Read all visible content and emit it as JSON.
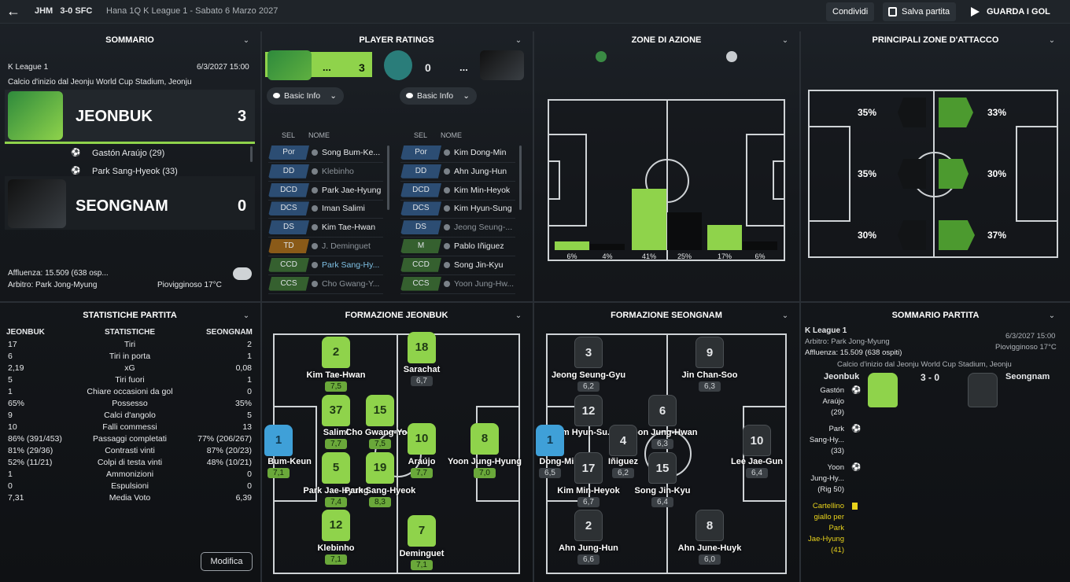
{
  "topbar": {
    "home_abbr": "JHM",
    "score": "3-0",
    "away_abbr": "SFC",
    "competition": "Hana 1Q K League 1 - Sabato 6 Marzo 2027",
    "share": "Condividi",
    "save": "Salva partita",
    "watch": "GUARDA I GOL"
  },
  "summary": {
    "title": "SOMMARIO",
    "league": "K League 1",
    "datetime": "6/3/2027 15:00",
    "kickoff": "Calcio d'inizio dal Jeonju World Cup Stadium, Jeonju",
    "home_name": "JEONBUK",
    "home_score": "3",
    "away_name": "SEONGNAM",
    "away_score": "0",
    "scorers": [
      "Gastón Araújo (29)",
      "Park Sang-Hyeok (33)"
    ],
    "attendance": "Affluenza: 15.509 (638 osp...",
    "referee": "Arbitro: Park Jong-Myung",
    "weather": "Piovigginoso 17°C"
  },
  "ratings": {
    "title": "PLAYER RATINGS",
    "home_score": "3",
    "away_score": "0",
    "dots": "...",
    "home_dropdown": "Basic Info",
    "away_dropdown": "Basic Info",
    "col_sel": "SEL",
    "col_name": "NOME",
    "home": [
      {
        "pos": "Por",
        "name": "Song Bum-Ke..."
      },
      {
        "pos": "DD",
        "name": "Klebinho"
      },
      {
        "pos": "DCD",
        "name": "Park Jae-Hyung"
      },
      {
        "pos": "DCS",
        "name": "Iman Salimi"
      },
      {
        "pos": "DS",
        "name": "Kim Tae-Hwan"
      },
      {
        "pos": "TD",
        "name": "J. Deminguet"
      },
      {
        "pos": "CCD",
        "name": "Park Sang-Hy..."
      },
      {
        "pos": "CCS",
        "name": "Cho Gwang-Y..."
      }
    ],
    "away": [
      {
        "pos": "Por",
        "name": "Kim Dong-Min"
      },
      {
        "pos": "DD",
        "name": "Ahn Jung-Hun"
      },
      {
        "pos": "DCD",
        "name": "Kim Min-Heyok"
      },
      {
        "pos": "DCS",
        "name": "Kim Hyun-Sung"
      },
      {
        "pos": "DS",
        "name": "Jeong Seung-..."
      },
      {
        "pos": "M",
        "name": "Pablo Iñiguez"
      },
      {
        "pos": "CCD",
        "name": "Song Jin-Kyu"
      },
      {
        "pos": "CCS",
        "name": "Yoon Jung-Hw..."
      }
    ]
  },
  "zones": {
    "title": "ZONE DI AZIONE",
    "labels": [
      "6%",
      "4%",
      "41%",
      "25%",
      "17%",
      "6%"
    ],
    "values": [
      6,
      4,
      41,
      25,
      17,
      6
    ]
  },
  "attack": {
    "title": "PRINCIPALI ZONE D'ATTACCO",
    "home": [
      "35%",
      "35%",
      "30%"
    ],
    "away": [
      "33%",
      "30%",
      "37%"
    ]
  },
  "stats": {
    "title": "STATISTICHE PARTITA",
    "h_home": "JEONBUK",
    "h_mid": "STATISTICHE",
    "h_away": "SEONGNAM",
    "edit": "Modifica",
    "rows": [
      [
        "17",
        "Tiri",
        "2"
      ],
      [
        "6",
        "Tiri in porta",
        "1"
      ],
      [
        "2,19",
        "xG",
        "0,08"
      ],
      [
        "5",
        "Tiri fuori",
        "1"
      ],
      [
        "1",
        "Chiare occasioni da gol",
        "0"
      ],
      [
        "65%",
        "Possesso",
        "35%"
      ],
      [
        "9",
        "Calci d'angolo",
        "5"
      ],
      [
        "10",
        "Falli commessi",
        "13"
      ],
      [
        "86% (391/453)",
        "Passaggi completati",
        "77% (206/267)"
      ],
      [
        "81% (29/36)",
        "Contrasti vinti",
        "87% (20/23)"
      ],
      [
        "52% (11/21)",
        "Colpi di testa vinti",
        "48% (10/21)"
      ],
      [
        "1",
        "Ammonizioni",
        "0"
      ],
      [
        "0",
        "Espulsioni",
        "0"
      ],
      [
        "7,31",
        "Media Voto",
        "6,39"
      ]
    ]
  },
  "form_home": {
    "title": "FORMAZIONE JEONBUK",
    "players": [
      {
        "num": "2",
        "name": "Kim Tae-Hwan",
        "rating": "7,5"
      },
      {
        "num": "18",
        "name": "Sarachat",
        "rating": "6,7"
      },
      {
        "num": "37",
        "name": "Salimi",
        "rating": "7,7"
      },
      {
        "num": "15",
        "name": "Cho Gwang-Yo...",
        "rating": "7,5"
      },
      {
        "num": "1",
        "name": "Bum-Keun",
        "rating": "7,1"
      },
      {
        "num": "10",
        "name": "Araújo",
        "rating": "7,7"
      },
      {
        "num": "8",
        "name": "Yoon Jung-Hyung",
        "rating": "7,0"
      },
      {
        "num": "5",
        "name": "Park Jae-Hyung",
        "rating": "7,4"
      },
      {
        "num": "19",
        "name": "Park Sang-Hyeok",
        "rating": "8,3"
      },
      {
        "num": "12",
        "name": "Klebinho",
        "rating": "7,1"
      },
      {
        "num": "7",
        "name": "Deminguet",
        "rating": "7,1"
      }
    ]
  },
  "form_away": {
    "title": "FORMAZIONE SEONGNAM",
    "players": [
      {
        "num": "3",
        "name": "Jeong Seung-Gyu",
        "rating": "6,2"
      },
      {
        "num": "9",
        "name": "Jin Chan-Soo",
        "rating": "6,3"
      },
      {
        "num": "12",
        "name": "Kim Hyun-Su...",
        "rating": ""
      },
      {
        "num": "6",
        "name": "Yoon Jung-Hwan",
        "rating": "6,3"
      },
      {
        "num": "1",
        "name": "Dong-Mi...",
        "rating": "6,5"
      },
      {
        "num": "4",
        "name": "Iñiguez",
        "rating": "6,2"
      },
      {
        "num": "10",
        "name": "Lee Jae-Gun",
        "rating": "6,4"
      },
      {
        "num": "17",
        "name": "Kim Min-Heyok",
        "rating": "6,7"
      },
      {
        "num": "15",
        "name": "Song Jin-Kyu",
        "rating": "6,4"
      },
      {
        "num": "2",
        "name": "Ahn Jung-Hun",
        "rating": "6,6"
      },
      {
        "num": "8",
        "name": "Ahn June-Huyk",
        "rating": "6,0"
      }
    ]
  },
  "msum": {
    "title": "SOMMARIO PARTITA",
    "league": "K League 1",
    "datetime": "6/3/2027 15:00",
    "referee": "Arbitro: Park Jong-Myung",
    "weather": "Piovigginoso 17°C",
    "attendance": "Affluenza: 15.509 (638 ospiti)",
    "kickoff": "Calcio d'inizio dal Jeonju World Cup Stadium, Jeonju",
    "home": "Jeonbuk",
    "score": "3 - 0",
    "away": "Seongnam",
    "events": [
      [
        "Gastón",
        "Araújo",
        "(29)"
      ],
      [
        "Park",
        "Sang-Hy...",
        "(33)"
      ],
      [
        "Yoon",
        "Jung-Hy...",
        "(Rig 50)"
      ]
    ],
    "card": [
      "Cartellino",
      "giallo per",
      "Park",
      "Jae-Hyung",
      "(41)"
    ]
  },
  "colors": {
    "accent": "#8fd34b",
    "home": "#8fd34b",
    "away": "#2d3134"
  }
}
